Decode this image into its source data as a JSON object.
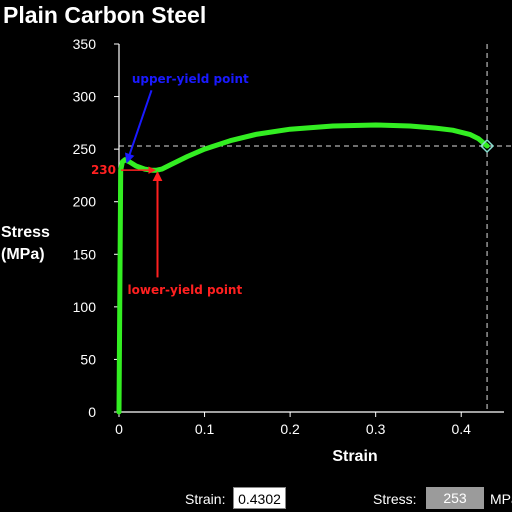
{
  "chart_data": {
    "type": "line",
    "title": "Plain Carbon Steel",
    "xlabel": "Strain",
    "ylabel": [
      "Stress",
      "(MPa)"
    ],
    "xlim": [
      0,
      0.45
    ],
    "ylim": [
      0,
      350
    ],
    "x_ticks": [
      0,
      0.1,
      0.2,
      0.3,
      0.4
    ],
    "x_tick_labels": [
      "0",
      "0.1",
      "0.2",
      "0.3",
      "0.4"
    ],
    "y_ticks": [
      0,
      50,
      100,
      150,
      200,
      250,
      300,
      350
    ],
    "y_tick_labels": [
      "0",
      "50",
      "100",
      "150",
      "200",
      "250",
      "300",
      "350"
    ],
    "grid": false,
    "series": [
      {
        "color": "#33ee22",
        "x": [
          0,
          0.002,
          0.004,
          0.007,
          0.012,
          0.02,
          0.03,
          0.038,
          0.044,
          0.05,
          0.06,
          0.08,
          0.1,
          0.13,
          0.16,
          0.2,
          0.25,
          0.3,
          0.34,
          0.37,
          0.39,
          0.41,
          0.42,
          0.4302
        ],
        "y": [
          0,
          230,
          238,
          240,
          238,
          234,
          231,
          230,
          230,
          231,
          235,
          243,
          250,
          258,
          264,
          269,
          272,
          273,
          272,
          270,
          268,
          264,
          260,
          253
        ]
      }
    ],
    "current_point": {
      "x": 0.4302,
      "y": 253,
      "color": "#88e0d0"
    },
    "reference_lines": {
      "color": "#dddddd",
      "x": 0.4302,
      "y": 253
    },
    "annotations": [
      {
        "text": "upper-yield point",
        "color": "#1a1aff",
        "at": [
          0.006,
          240
        ],
        "text_at": [
          0.015,
          313
        ]
      },
      {
        "text": "lower-yield point",
        "color": "#ff2020",
        "at": [
          0.045,
          230
        ],
        "text_at": [
          0.01,
          112
        ]
      },
      {
        "text": "230",
        "color": "#ff2020",
        "value": 230
      }
    ]
  },
  "readout": {
    "strain_label": "Strain:",
    "strain_value": "0.4302",
    "stress_label": "Stress:",
    "stress_value": "253",
    "stress_unit": "MPa"
  }
}
